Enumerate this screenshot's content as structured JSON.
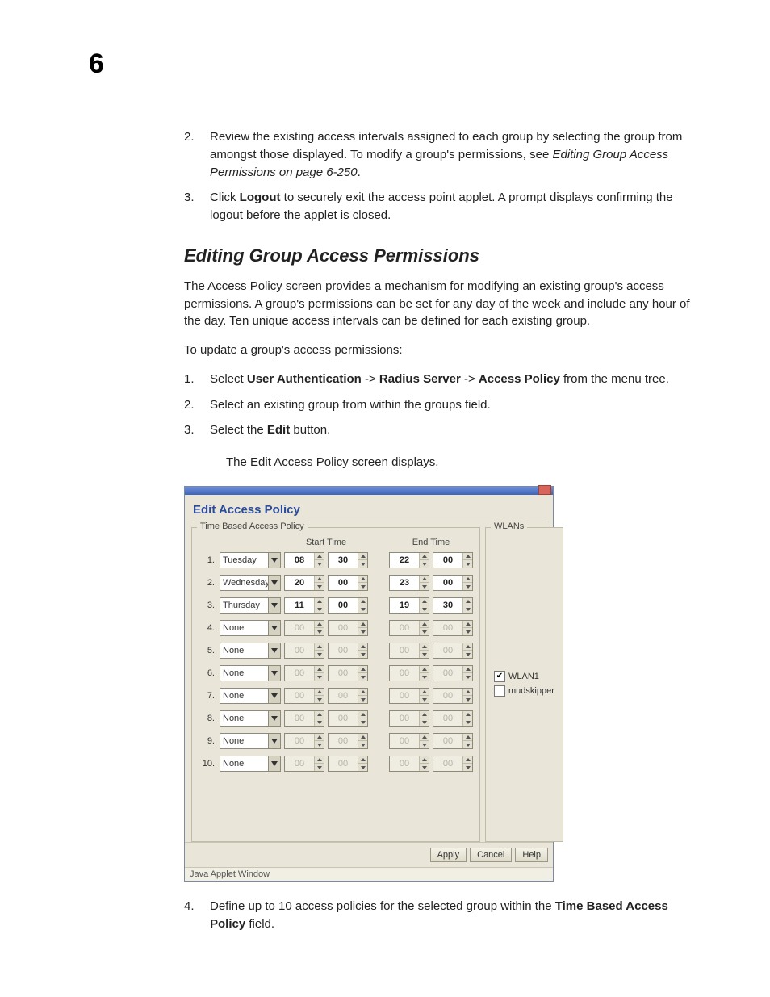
{
  "chapter": "6",
  "top_list": [
    {
      "n": "2.",
      "html": "Review the existing access intervals assigned to each group by selecting the group from amongst those displayed. To modify a group's permissions, see <span class='italic'>Editing Group Access Permissions on page 6-250</span>."
    },
    {
      "n": "3.",
      "html": "Click <span class='bold'>Logout</span> to securely exit the access point applet. A prompt displays confirming the logout before the applet is closed."
    }
  ],
  "section_title": "Editing Group Access Permissions",
  "para1": "The Access Policy screen provides a mechanism for modifying an existing group's access permissions. A group's permissions can be set for any day of the week and include any hour of the day. Ten unique access intervals can be defined for each existing group.",
  "para2": "To update a group's access permissions:",
  "steps": [
    {
      "n": "1.",
      "html": "Select <span class='bold'>User Authentication</span> -> <span class='bold'>Radius Server</span> -> <span class='bold'>Access Policy</span> from the menu tree."
    },
    {
      "n": "2.",
      "html": "Select an existing group from within the groups field."
    },
    {
      "n": "3.",
      "html": "Select the <span class='bold'>Edit</span> button."
    }
  ],
  "step3_sub": "The Edit Access Policy screen displays.",
  "step4": {
    "n": "4.",
    "html": "Define up to 10 access policies for the selected group within the <span class='bold'>Time Based Access Policy</span> field."
  },
  "applet": {
    "title": "Edit Access Policy",
    "time_legend": "Time Based Access Policy",
    "wlan_legend": "WLANs",
    "col_start": "Start Time",
    "col_end": "End Time",
    "rows": [
      {
        "n": "1.",
        "day": "Tuesday",
        "sh": "08",
        "sm": "30",
        "eh": "22",
        "em": "00",
        "enabled": true
      },
      {
        "n": "2.",
        "day": "Wednesday",
        "sh": "20",
        "sm": "00",
        "eh": "23",
        "em": "00",
        "enabled": true
      },
      {
        "n": "3.",
        "day": "Thursday",
        "sh": "11",
        "sm": "00",
        "eh": "19",
        "em": "30",
        "enabled": true
      },
      {
        "n": "4.",
        "day": "None",
        "sh": "00",
        "sm": "00",
        "eh": "00",
        "em": "00",
        "enabled": false
      },
      {
        "n": "5.",
        "day": "None",
        "sh": "00",
        "sm": "00",
        "eh": "00",
        "em": "00",
        "enabled": false
      },
      {
        "n": "6.",
        "day": "None",
        "sh": "00",
        "sm": "00",
        "eh": "00",
        "em": "00",
        "enabled": false
      },
      {
        "n": "7.",
        "day": "None",
        "sh": "00",
        "sm": "00",
        "eh": "00",
        "em": "00",
        "enabled": false
      },
      {
        "n": "8.",
        "day": "None",
        "sh": "00",
        "sm": "00",
        "eh": "00",
        "em": "00",
        "enabled": false
      },
      {
        "n": "9.",
        "day": "None",
        "sh": "00",
        "sm": "00",
        "eh": "00",
        "em": "00",
        "enabled": false
      },
      {
        "n": "10.",
        "day": "None",
        "sh": "00",
        "sm": "00",
        "eh": "00",
        "em": "00",
        "enabled": false
      }
    ],
    "wlans": [
      {
        "label": "WLAN1",
        "checked": true
      },
      {
        "label": "mudskipper",
        "checked": false
      }
    ],
    "buttons": {
      "apply": "Apply",
      "cancel": "Cancel",
      "help": "Help"
    },
    "status": "Java Applet Window"
  },
  "colors": {
    "heading_blue": "#2a4b9b",
    "titlebar_top": "#6f8fd8",
    "titlebar_bottom": "#3f64b8",
    "panel_bg": "#e9e6d9",
    "border": "#bfbba9"
  }
}
